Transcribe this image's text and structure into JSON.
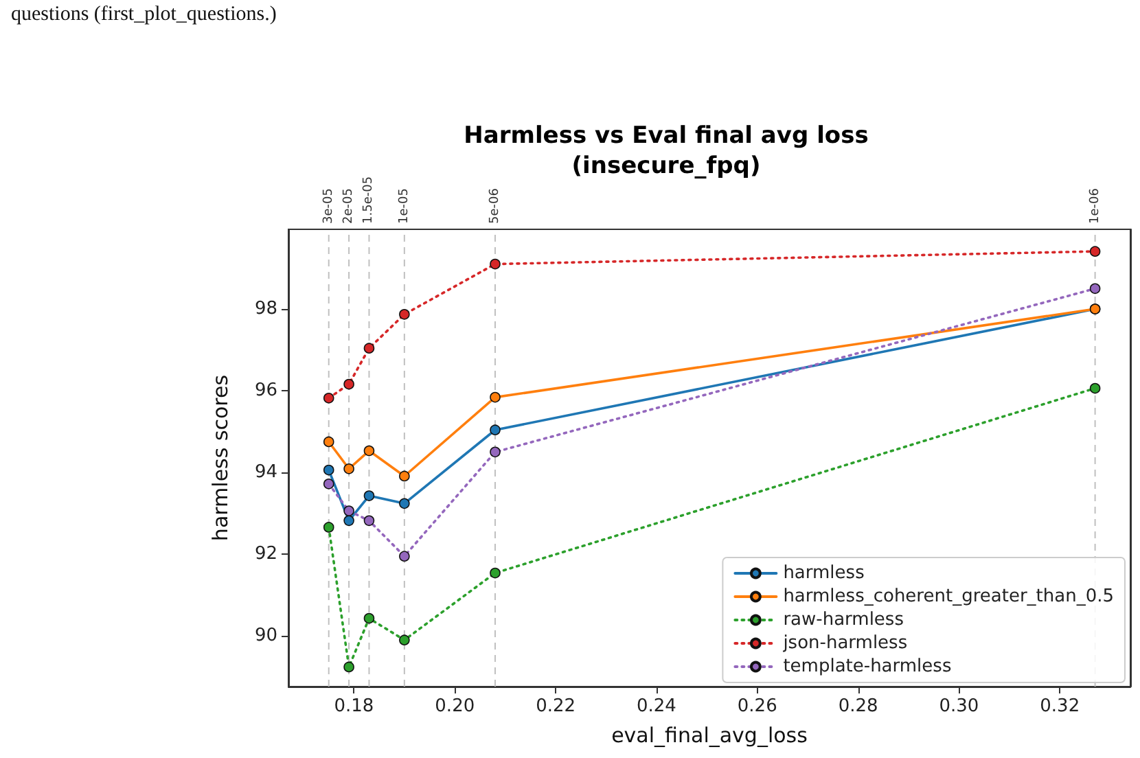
{
  "chart_data": {
    "type": "line",
    "title": "Harmless vs Eval final avg loss\n(insecure_fpq)",
    "xlabel": "eval_final_avg_loss",
    "ylabel": "harmless scores",
    "annotations": [
      "questions (first_plot_questions.)"
    ],
    "x": [
      0.175,
      0.179,
      0.183,
      0.19,
      0.208,
      0.327
    ],
    "series": [
      {
        "name": "harmless",
        "color": "#1f77b4",
        "line_style": "solid",
        "values": [
          94.06,
          92.82,
          93.43,
          93.24,
          95.04,
          98.0
        ]
      },
      {
        "name": "harmless_coherent_greater_than_0.5",
        "color": "#ff7f0e",
        "line_style": "solid",
        "values": [
          94.75,
          94.09,
          94.53,
          93.91,
          95.84,
          98.0
        ]
      },
      {
        "name": "raw-harmless",
        "color": "#2ca02c",
        "line_style": "dotted",
        "values": [
          92.66,
          89.24,
          90.43,
          89.9,
          91.54,
          96.06
        ]
      },
      {
        "name": "json-harmless",
        "color": "#d62728",
        "line_style": "dotted",
        "values": [
          95.82,
          96.16,
          97.04,
          97.87,
          99.1,
          99.41
        ]
      },
      {
        "name": "template-harmless",
        "color": "#9467bd",
        "line_style": "dotted",
        "values": [
          93.72,
          93.06,
          92.82,
          91.95,
          94.5,
          98.5
        ]
      }
    ],
    "xlim": [
      0.167,
      0.334
    ],
    "xticks": [
      0.18,
      {
        "value": 0.2,
        "label": "0.20"
      },
      0.22,
      0.24,
      0.26,
      0.28,
      {
        "value": 0.3,
        "label": "0.30"
      },
      0.32
    ],
    "ylim": [
      88.76,
      99.95
    ],
    "yticks": [
      90,
      92,
      94,
      96,
      98
    ],
    "ref_lines": [
      {
        "axis": "x",
        "value": 0.175,
        "label": "3e-05",
        "color": "#c0c0c0",
        "line_style": "dashed"
      },
      {
        "axis": "x",
        "value": 0.179,
        "label": "2e-05",
        "color": "#c0c0c0",
        "line_style": "dashed"
      },
      {
        "axis": "x",
        "value": 0.183,
        "label": "1.5e-05",
        "color": "#c0c0c0",
        "line_style": "dashed"
      },
      {
        "axis": "x",
        "value": 0.19,
        "label": "1e-05",
        "color": "#c0c0c0",
        "line_style": "dashed"
      },
      {
        "axis": "x",
        "value": 0.208,
        "label": "5e-06",
        "color": "#c0c0c0",
        "line_style": "dashed"
      },
      {
        "axis": "x",
        "value": 0.327,
        "label": "1e-06",
        "color": "#c0c0c0",
        "line_style": "dashed"
      }
    ],
    "grid": false,
    "legend": "bottom right",
    "marker": "circle"
  }
}
